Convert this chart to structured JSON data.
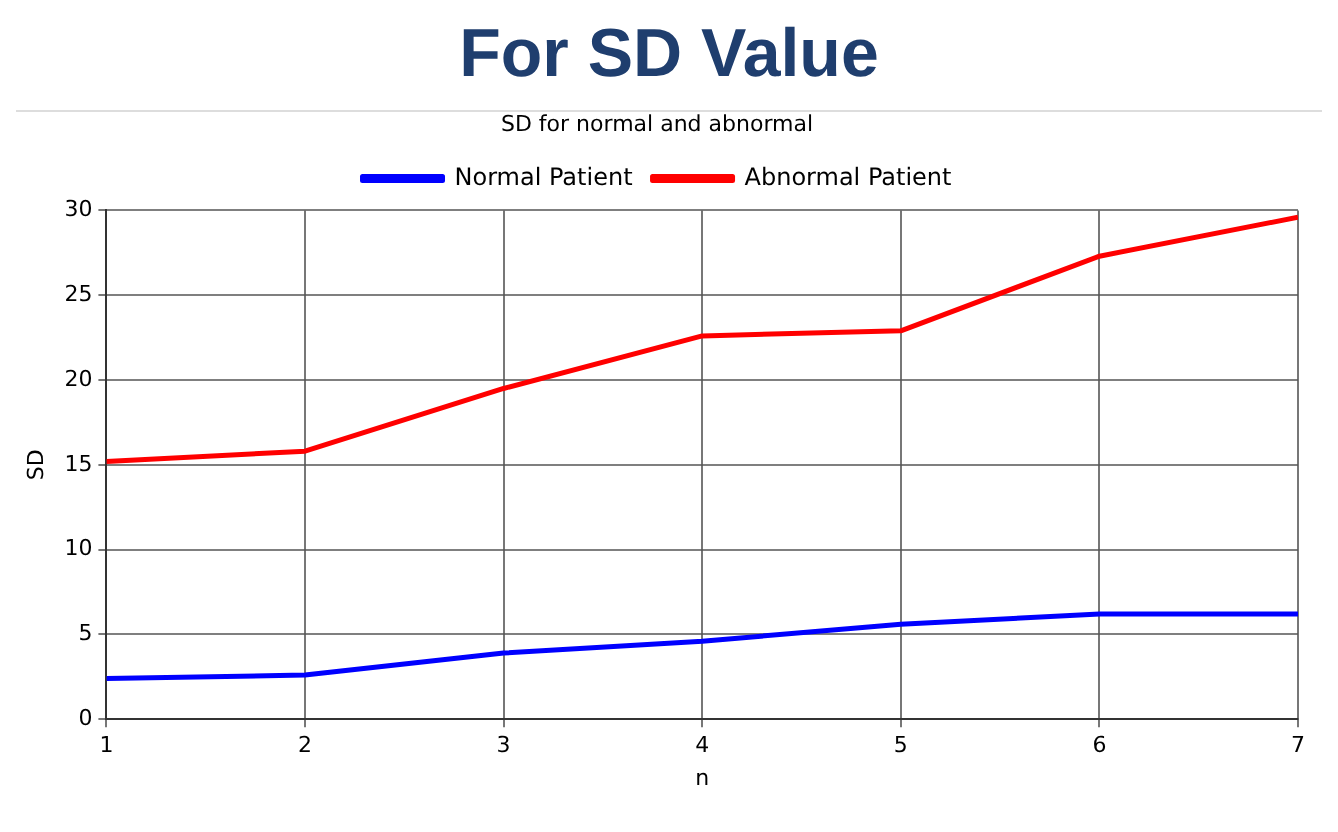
{
  "chart_data": {
    "type": "line",
    "title": "For SD Value",
    "subtitle": "SD for normal and abnormal",
    "xlabel": "n",
    "ylabel": "SD",
    "x": [
      1,
      2,
      3,
      4,
      5,
      6,
      7
    ],
    "series": [
      {
        "name": "Normal Patient",
        "color": "#0000ff",
        "values": [
          2.4,
          2.6,
          3.9,
          4.6,
          5.6,
          6.2,
          6.2
        ]
      },
      {
        "name": "Abnormal Patient",
        "color": "#ff0000",
        "values": [
          15.2,
          15.8,
          19.5,
          22.6,
          22.9,
          27.3,
          29.6
        ]
      }
    ],
    "xlim": [
      1,
      7
    ],
    "xticks": [
      1,
      2,
      3,
      4,
      5,
      6,
      7
    ],
    "ylim": [
      0,
      30
    ],
    "yticks": [
      0,
      5,
      10,
      15,
      20,
      25,
      30
    ],
    "grid": true,
    "legend": "top",
    "marker": "none",
    "line_style": "solid"
  }
}
